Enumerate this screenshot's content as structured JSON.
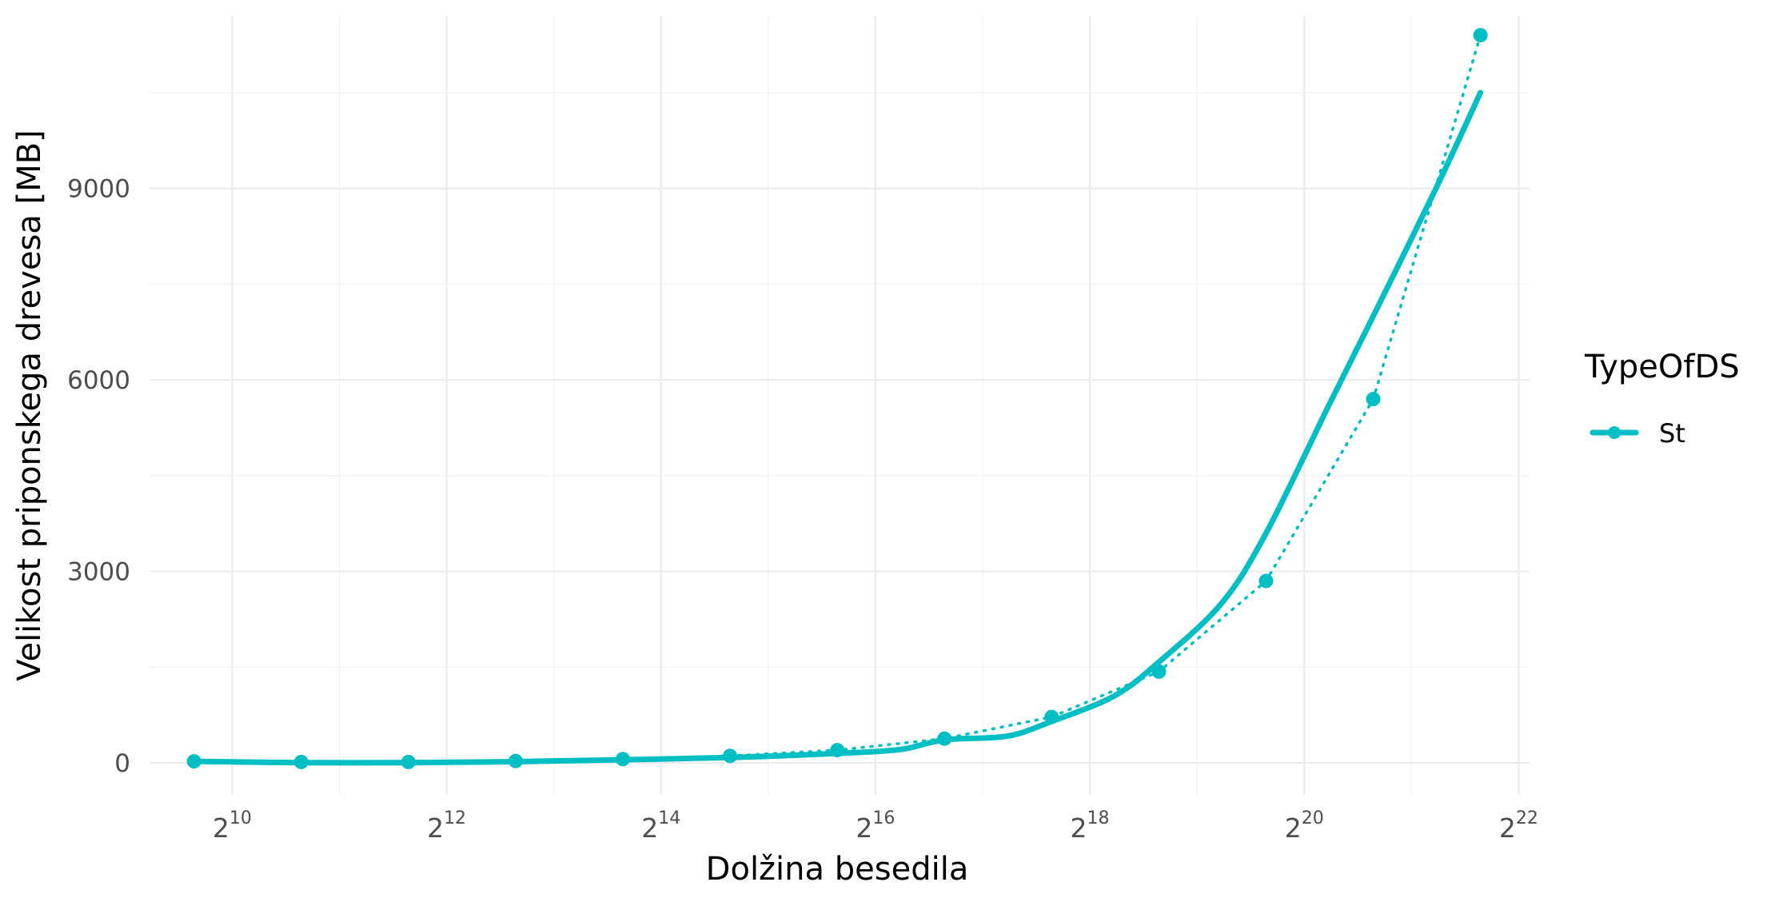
{
  "chart_data": {
    "type": "line",
    "xlabel": "Dolžina besedila",
    "ylabel": "Velikost priponskega drevesa [MB]",
    "x_scale": "log2",
    "x_ticks": [
      {
        "base": "2",
        "exp": "10",
        "value": 1024
      },
      {
        "base": "2",
        "exp": "12",
        "value": 4096
      },
      {
        "base": "2",
        "exp": "14",
        "value": 16384
      },
      {
        "base": "2",
        "exp": "16",
        "value": 65536
      },
      {
        "base": "2",
        "exp": "18",
        "value": 262144
      },
      {
        "base": "2",
        "exp": "20",
        "value": 1048576
      },
      {
        "base": "2",
        "exp": "22",
        "value": 4194304
      }
    ],
    "y_ticks": [
      0,
      3000,
      6000,
      9000
    ],
    "xlim": [
      600,
      4500000
    ],
    "ylim": [
      -500,
      11700
    ],
    "grid": true,
    "legend": {
      "title": "TypeOfDS",
      "position": "right"
    },
    "color": "#00BFC4",
    "series": [
      {
        "name": "St",
        "x": [
          800,
          1600,
          3200,
          6400,
          12800,
          25600,
          51200,
          102400,
          204800,
          409600,
          819200,
          1638400,
          3276800
        ],
        "y": [
          25,
          15,
          15,
          30,
          60,
          110,
          200,
          380,
          720,
          1430,
          2850,
          5700,
          11400
        ]
      }
    ],
    "smooth_fit": {
      "x": [
        800,
        1600,
        3200,
        6400,
        12800,
        25600,
        51200,
        76800,
        102400,
        153600,
        204800,
        307200,
        409600,
        614400,
        819200,
        1228800,
        1638400,
        2457600,
        3276800
      ],
      "y": [
        25,
        5,
        5,
        20,
        50,
        85,
        150,
        210,
        360,
        420,
        650,
        1050,
        1580,
        2500,
        3600,
        5600,
        7000,
        9000,
        10500
      ]
    }
  }
}
